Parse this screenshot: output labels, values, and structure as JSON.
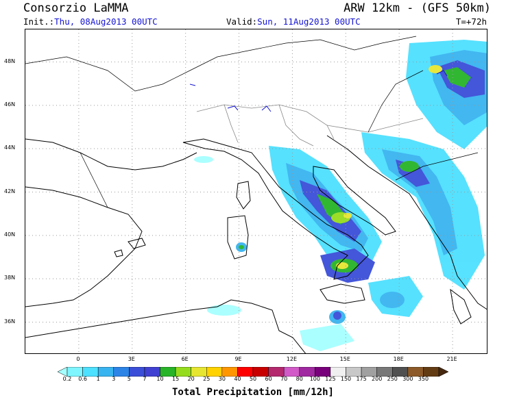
{
  "header": {
    "brand": "Consorzio LaMMA",
    "model": "ARW 12km - (GFS 50km)",
    "init_label": "Init.:",
    "init_value": "Thu, 08Aug2013 00UTC",
    "valid_label": "Valid:",
    "valid_value": "Sun, 11Aug2013 00UTC",
    "lead_time": "T=+72h"
  },
  "map": {
    "lat_labels": [
      "48N",
      "46N",
      "44N",
      "42N",
      "40N",
      "38N",
      "36N"
    ],
    "lon_labels": [
      "0",
      "3E",
      "6E",
      "9E",
      "12E",
      "15E",
      "18E",
      "21E"
    ],
    "lat_values": [
      48,
      46,
      44,
      42,
      40,
      38,
      36
    ],
    "lon_values": [
      0,
      3,
      6,
      9,
      12,
      15,
      18,
      21
    ],
    "lon_range": [
      -3,
      23
    ],
    "lat_range": [
      34.5,
      49.5
    ]
  },
  "colorbar": {
    "title": "Total Precipitation [mm/12h]",
    "labels": [
      "0.2",
      "0.6",
      "1",
      "3",
      "5",
      "7",
      "10",
      "15",
      "20",
      "25",
      "30",
      "40",
      "50",
      "60",
      "70",
      "80",
      "100",
      "125",
      "150",
      "175",
      "200",
      "250",
      "300",
      "350"
    ],
    "colors": [
      "#a6ffff",
      "#7ff5ff",
      "#4ee0ff",
      "#38b4f0",
      "#2c84e6",
      "#3a4ed8",
      "#4040d2",
      "#28b428",
      "#96dc1e",
      "#e6e632",
      "#ffd200",
      "#ff9600",
      "#ff0000",
      "#c80000",
      "#b4286e",
      "#d25ac8",
      "#a028a0",
      "#78007a",
      "#f0f0f0",
      "#c8c8c8",
      "#a0a0a0",
      "#787878",
      "#505050",
      "#8c5a28",
      "#643c14",
      "#462810"
    ]
  }
}
